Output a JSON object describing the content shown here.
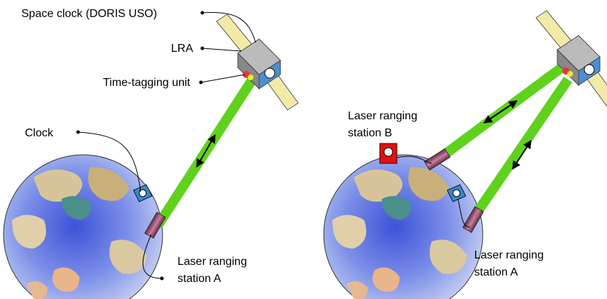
{
  "left_panel": {
    "labels": {
      "space_clock": "Space clock (DORIS USO)",
      "lra": "LRA",
      "time_tagging_unit": "Time-tagging unit",
      "clock": "Clock",
      "station_a": [
        "Laser ranging",
        "station A"
      ]
    }
  },
  "right_panel": {
    "labels": {
      "station_b": [
        "Laser ranging",
        "station B"
      ],
      "station_a": [
        "Laser ranging",
        "station A"
      ]
    }
  }
}
